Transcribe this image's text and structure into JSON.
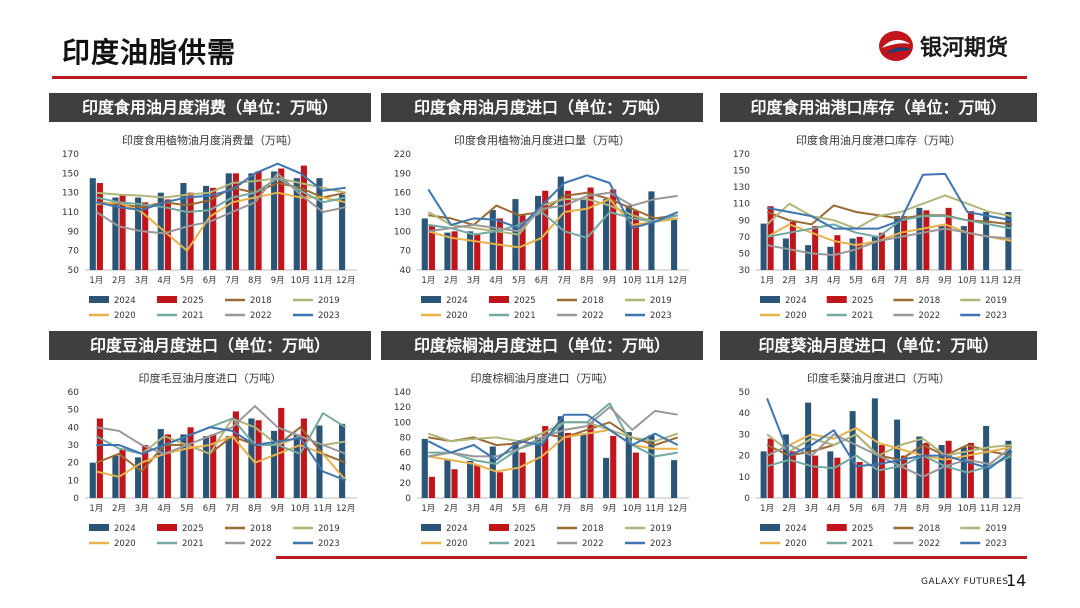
{
  "page": {
    "title": "印度油脂供需",
    "page_number": "14",
    "footer_brand": "GALAXY FUTURES",
    "logo_text": "银河期货"
  },
  "colors": {
    "accent_red": "#b81c22",
    "panel_header": "#3f3f3f"
  },
  "series_colors": {
    "2024": "#2a5577",
    "2025": "#c0151a",
    "2018": "#9b6a35",
    "2019": "#b0b57a",
    "2020": "#e6b24c",
    "2021": "#74aaa2",
    "2022": "#999999",
    "2023": "#3f76b0"
  },
  "months": [
    "1月",
    "2月",
    "3月",
    "4月",
    "5月",
    "6月",
    "7月",
    "8月",
    "9月",
    "10月",
    "11月",
    "12月"
  ],
  "legend_years": [
    "2024",
    "2025",
    "2018",
    "2019",
    "2020",
    "2021",
    "2022",
    "2023"
  ],
  "chart_data": [
    {
      "type": "bar+line",
      "header": "印度食用油月度消费（单位：万吨）",
      "title": "印度食用植物油月度消费量（万吨）",
      "ylim": [
        50,
        170
      ],
      "yticks": [
        50,
        70,
        90,
        110,
        130,
        150,
        170
      ],
      "bars": {
        "2024": [
          145,
          125,
          125,
          130,
          140,
          137,
          150,
          150,
          152,
          145,
          145,
          128
        ],
        "2025": [
          140,
          127,
          120,
          123,
          130,
          135,
          150,
          152,
          155,
          158
        ]
      },
      "lines": {
        "2018": [
          120,
          118,
          115,
          120,
          117,
          122,
          135,
          130,
          140,
          135,
          125,
          130
        ],
        "2019": [
          130,
          128,
          127,
          125,
          128,
          130,
          140,
          142,
          145,
          140,
          135,
          130
        ],
        "2020": [
          118,
          120,
          110,
          90,
          70,
          105,
          120,
          125,
          130,
          125,
          125,
          120
        ],
        "2021": [
          125,
          120,
          118,
          115,
          110,
          112,
          125,
          130,
          145,
          132,
          120,
          125
        ],
        "2022": [
          110,
          95,
          90,
          88,
          95,
          100,
          110,
          120,
          150,
          128,
          110,
          115
        ],
        "2023": [
          120,
          115,
          112,
          120,
          125,
          127,
          133,
          150,
          160,
          150,
          132,
          135
        ]
      }
    },
    {
      "type": "bar+line",
      "header": "印度食用油月度进口（单位：万吨）",
      "title": "印度食用植物油月度进口量（万吨）",
      "ylim": [
        40,
        220
      ],
      "yticks": [
        40,
        70,
        100,
        130,
        160,
        190,
        220
      ],
      "bars": {
        "2024": [
          120,
          98,
          100,
          133,
          150,
          155,
          185,
          150,
          150,
          140,
          162,
          118
        ],
        "2025": [
          110,
          100,
          97,
          120,
          127,
          163,
          163,
          168,
          165,
          132
        ]
      },
      "lines": {
        "2018": [
          125,
          120,
          110,
          140,
          125,
          130,
          155,
          160,
          150,
          135,
          120,
          125
        ],
        "2019": [
          130,
          110,
          105,
          100,
          95,
          140,
          150,
          150,
          140,
          125,
          115,
          120
        ],
        "2020": [
          100,
          90,
          85,
          80,
          75,
          90,
          130,
          135,
          150,
          110,
          115,
          120
        ],
        "2021": [
          110,
          105,
          95,
          100,
          110,
          130,
          100,
          90,
          130,
          120,
          115,
          125
        ],
        "2022": [
          100,
          105,
          110,
          105,
          100,
          135,
          140,
          155,
          160,
          140,
          150,
          155
        ],
        "2023": [
          165,
          110,
          120,
          118,
          105,
          140,
          175,
          187,
          175,
          105,
          115,
          130
        ]
      }
    },
    {
      "type": "bar+line",
      "header": "印度食用油港口库存（单位：万吨）",
      "title": "印度食用油月度港口库存（万吨）",
      "ylim": [
        30,
        170
      ],
      "yticks": [
        30,
        50,
        70,
        90,
        110,
        130,
        150,
        170
      ],
      "bars": {
        "2024": [
          86,
          68,
          60,
          58,
          68,
          70,
          95,
          105,
          83,
          83,
          100,
          100
        ],
        "2025": [
          107,
          88,
          83,
          72,
          70,
          75,
          95,
          102,
          105,
          101
        ]
      },
      "lines": {
        "2018": [
          100,
          90,
          85,
          108,
          100,
          96,
          92,
          96,
          96,
          90,
          88,
          85
        ],
        "2019": [
          85,
          110,
          95,
          90,
          80,
          95,
          100,
          110,
          120,
          110,
          100,
          95
        ],
        "2020": [
          70,
          85,
          75,
          65,
          60,
          65,
          75,
          80,
          85,
          75,
          70,
          65
        ],
        "2021": [
          70,
          75,
          80,
          85,
          75,
          70,
          90,
          95,
          95,
          90,
          85,
          80
        ],
        "2022": [
          60,
          55,
          50,
          48,
          55,
          65,
          70,
          75,
          80,
          75,
          70,
          68
        ],
        "2023": [
          105,
          100,
          95,
          80,
          80,
          80,
          90,
          145,
          146,
          100,
          95,
          90
        ]
      }
    },
    {
      "type": "bar+line",
      "header": "印度豆油月度进口（单位：万吨）",
      "title": "印度毛豆油月度进口（万吨）",
      "ylim": [
        0,
        60
      ],
      "yticks": [
        0,
        10,
        20,
        30,
        40,
        50,
        60
      ],
      "bars": {
        "2024": [
          20,
          24,
          23,
          39,
          36,
          35,
          35,
          45,
          38,
          36,
          41,
          42
        ],
        "2025": [
          45,
          28,
          30,
          36,
          40,
          36,
          49,
          44,
          51,
          45
        ]
      },
      "lines": {
        "2018": [
          20,
          25,
          15,
          30,
          30,
          25,
          35,
          30,
          30,
          40,
          25,
          20
        ],
        "2019": [
          30,
          30,
          25,
          35,
          30,
          25,
          45,
          40,
          30,
          35,
          30,
          32
        ],
        "2020": [
          15,
          12,
          20,
          25,
          28,
          30,
          35,
          20,
          25,
          30,
          25,
          10
        ],
        "2021": [
          35,
          28,
          25,
          30,
          35,
          40,
          45,
          30,
          30,
          25,
          48,
          40
        ],
        "2022": [
          40,
          38,
          30,
          25,
          30,
          35,
          40,
          52,
          40,
          35,
          30,
          25
        ],
        "2023": [
          30,
          30,
          25,
          30,
          35,
          40,
          38,
          30,
          32,
          34,
          15,
          10
        ]
      }
    },
    {
      "type": "bar+line",
      "header": "印度棕榈油月度进口（单位：万吨）",
      "title": "印度棕榈油月度进口（万吨）",
      "ylim": [
        0,
        140
      ],
      "yticks": [
        0,
        20,
        40,
        60,
        80,
        100,
        120,
        140
      ],
      "bars": {
        "2024": [
          78,
          50,
          49,
          68,
          74,
          80,
          108,
          85,
          53,
          87,
          83,
          50
        ],
        "2025": [
          28,
          38,
          44,
          34,
          60,
          95,
          86,
          100,
          82,
          60
        ]
      },
      "lines": {
        "2018": [
          80,
          75,
          80,
          70,
          72,
          85,
          80,
          90,
          100,
          80,
          70,
          80
        ],
        "2019": [
          85,
          75,
          78,
          80,
          75,
          85,
          100,
          100,
          90,
          80,
          75,
          85
        ],
        "2020": [
          55,
          50,
          45,
          35,
          40,
          55,
          80,
          85,
          90,
          70,
          65,
          65
        ],
        "2021": [
          60,
          60,
          50,
          45,
          65,
          75,
          100,
          100,
          125,
          70,
          55,
          60
        ],
        "2022": [
          55,
          60,
          55,
          55,
          65,
          80,
          90,
          95,
          120,
          90,
          115,
          110
        ],
        "2023": [
          75,
          60,
          70,
          50,
          75,
          70,
          110,
          110,
          90,
          70,
          85,
          70
        ]
      }
    },
    {
      "type": "bar+line",
      "header": "印度葵油月度进口（单位：万吨）",
      "title": "印度毛葵油月度进口（万吨）",
      "ylim": [
        0,
        50
      ],
      "yticks": [
        0,
        10,
        20,
        30,
        40,
        50
      ],
      "bars": {
        "2024": [
          22,
          30,
          45,
          22,
          41,
          47,
          37,
          29,
          25,
          24,
          34,
          27
        ],
        "2025": [
          28,
          22,
          20,
          19,
          17,
          25,
          20,
          26,
          27,
          26
        ]
      },
      "lines": {
        "2018": [
          25,
          20,
          22,
          25,
          30,
          20,
          18,
          25,
          20,
          25,
          22,
          20
        ],
        "2019": [
          30,
          22,
          28,
          25,
          30,
          20,
          25,
          28,
          20,
          22,
          24,
          25
        ],
        "2020": [
          20,
          25,
          30,
          28,
          33,
          26,
          23,
          20,
          18,
          20,
          22,
          24
        ],
        "2021": [
          15,
          18,
          15,
          14,
          20,
          13,
          15,
          20,
          15,
          12,
          15,
          20
        ],
        "2022": [
          20,
          25,
          20,
          30,
          25,
          20,
          15,
          10,
          15,
          18,
          16,
          24
        ],
        "2023": [
          47,
          20,
          25,
          32,
          15,
          16,
          18,
          20,
          20,
          17,
          14,
          22
        ]
      }
    }
  ]
}
